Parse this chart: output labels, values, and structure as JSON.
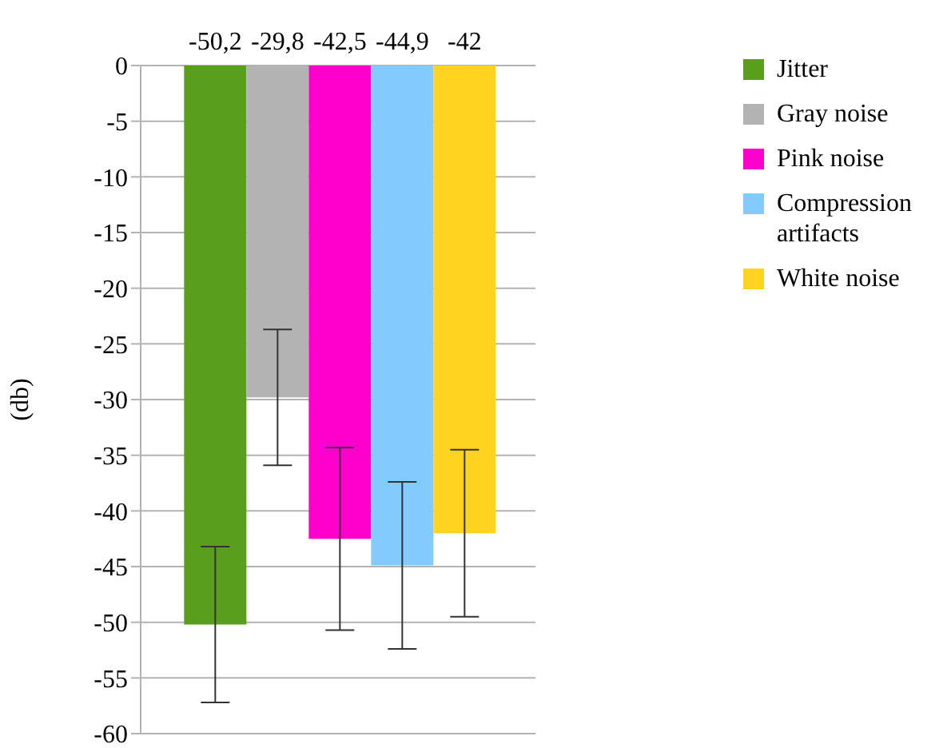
{
  "chart_data": {
    "type": "bar",
    "categories": [
      null
    ],
    "ylabel": "(db)",
    "ylim": [
      -60,
      0
    ],
    "yticks": [
      -60,
      -55,
      -50,
      -45,
      -40,
      -35,
      -30,
      -25,
      -20,
      -15,
      -10,
      -5,
      0
    ],
    "grid": "y",
    "legend": "right",
    "series": [
      {
        "name": "Jitter",
        "color": "#5a9e1e",
        "values": [
          -50.2
        ],
        "errors": [
          7
        ],
        "value_labels": [
          "-50,2"
        ]
      },
      {
        "name": "Gray noise",
        "color": "#b3b3b3",
        "values": [
          -29.8
        ],
        "errors": [
          6.1
        ],
        "value_labels": [
          "-29,8"
        ]
      },
      {
        "name": "Pink noise",
        "color": "#ff00cc",
        "values": [
          -42.5
        ],
        "errors": [
          8.2
        ],
        "value_labels": [
          "-42,5"
        ]
      },
      {
        "name": "Compression artifacts",
        "color": "#83caff",
        "values": [
          -44.9
        ],
        "errors": [
          7.5
        ],
        "value_labels": [
          "-44,9"
        ]
      },
      {
        "name": "White noise",
        "color": "#ffd320",
        "values": [
          -42
        ],
        "errors": [
          7.5
        ],
        "value_labels": [
          "-42"
        ]
      }
    ]
  }
}
